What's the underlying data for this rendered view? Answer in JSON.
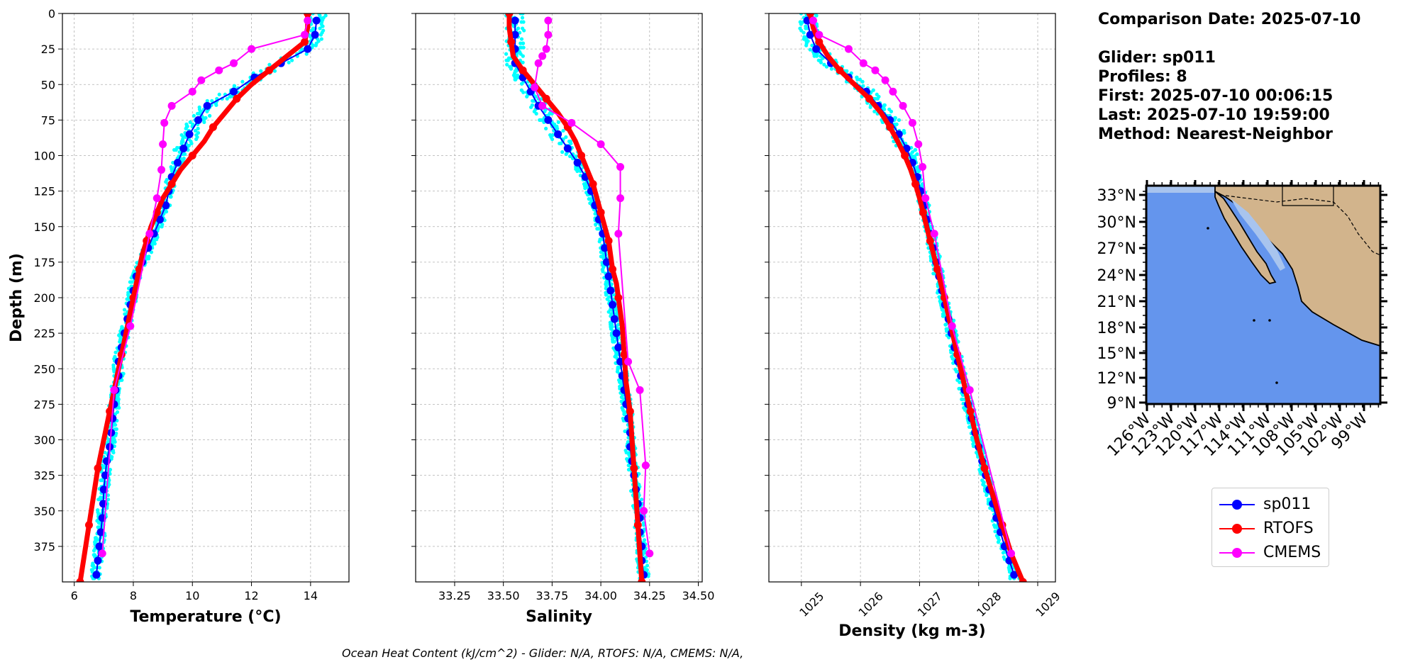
{
  "info": {
    "comparison_date": "Comparison Date: 2025-07-10",
    "glider": "Glider: sp011",
    "profiles": "Profiles: 8",
    "first": "First: 2025-07-10 00:06:15",
    "last": "Last: 2025-07-10 19:59:00",
    "method": "Method: Nearest-Neighbor"
  },
  "footer": "Ocean Heat Content (kJ/cm^2) - Glider: N/A,  RTOFS: N/A,  CMEMS: N/A,",
  "legend": [
    {
      "label": "sp011",
      "color": "#0000ff"
    },
    {
      "label": "RTOFS",
      "color": "#ff0000"
    },
    {
      "label": "CMEMS",
      "color": "#ff00ff"
    }
  ],
  "colors": {
    "glider_raw": "#00ffff",
    "glider": "#0000ff",
    "rtofs": "#ff0000",
    "cmems": "#ff00ff",
    "ocean": "#6495ed",
    "land": "#d2b48c"
  },
  "chart_data": [
    {
      "type": "line",
      "xlabel": "Temperature (°C)",
      "ylabel": "Depth (m)",
      "xlim": [
        5.6,
        15.3
      ],
      "ylim": [
        400,
        0
      ],
      "xticks": [
        6,
        8,
        10,
        12,
        14
      ],
      "yticks": [
        0,
        25,
        50,
        75,
        100,
        125,
        150,
        175,
        200,
        225,
        250,
        275,
        300,
        325,
        350,
        375
      ],
      "grid": true,
      "series": [
        {
          "name": "sp011",
          "depth": [
            5,
            15,
            25,
            35,
            45,
            55,
            65,
            75,
            85,
            95,
            105,
            115,
            125,
            135,
            145,
            155,
            165,
            175,
            185,
            195,
            205,
            215,
            225,
            235,
            245,
            255,
            265,
            275,
            285,
            295,
            305,
            315,
            325,
            335,
            345,
            355,
            365,
            375,
            385,
            395
          ],
          "values": [
            14.2,
            14.15,
            13.9,
            13.0,
            12.1,
            11.4,
            10.5,
            10.2,
            9.9,
            9.7,
            9.5,
            9.3,
            9.2,
            9.1,
            8.9,
            8.7,
            8.5,
            8.3,
            8.1,
            8.0,
            7.9,
            7.8,
            7.7,
            7.6,
            7.5,
            7.5,
            7.4,
            7.35,
            7.3,
            7.25,
            7.2,
            7.1,
            7.05,
            7.0,
            6.98,
            6.95,
            6.9,
            6.85,
            6.8,
            6.75
          ]
        },
        {
          "name": "RTOFS",
          "depth": [
            0,
            10,
            20,
            30,
            40,
            50,
            60,
            70,
            80,
            90,
            100,
            110,
            120,
            130,
            140,
            150,
            160,
            170,
            180,
            190,
            200,
            220,
            240,
            260,
            280,
            300,
            320,
            340,
            360,
            380,
            400
          ],
          "values": [
            13.9,
            13.9,
            13.8,
            13.2,
            12.6,
            12.0,
            11.5,
            11.1,
            10.7,
            10.4,
            10.0,
            9.6,
            9.3,
            9.0,
            8.8,
            8.6,
            8.45,
            8.3,
            8.2,
            8.1,
            8.0,
            7.8,
            7.6,
            7.4,
            7.2,
            7.0,
            6.8,
            6.65,
            6.5,
            6.35,
            6.2
          ]
        },
        {
          "name": "CMEMS",
          "depth": [
            5,
            15,
            25,
            35,
            40,
            47,
            55,
            65,
            77,
            92,
            110,
            130,
            155,
            220,
            265,
            380
          ],
          "values": [
            13.9,
            13.8,
            12.0,
            11.4,
            10.9,
            10.3,
            10.0,
            9.3,
            9.05,
            9.0,
            8.95,
            8.8,
            8.55,
            7.9,
            7.35,
            6.95
          ]
        }
      ]
    },
    {
      "type": "line",
      "xlabel": "Salinity",
      "xlim": [
        33.05,
        34.52
      ],
      "ylim": [
        400,
        0
      ],
      "xticks": [
        33.25,
        33.5,
        33.75,
        34.0,
        34.25,
        34.5
      ],
      "xtick_labels": [
        "33.25",
        "33.50",
        "33.75",
        "34.00",
        "34.25",
        "34.50"
      ],
      "grid": true,
      "series": [
        {
          "name": "sp011",
          "depth": [
            5,
            15,
            25,
            35,
            45,
            55,
            65,
            75,
            85,
            95,
            105,
            115,
            125,
            135,
            145,
            155,
            165,
            175,
            185,
            195,
            205,
            215,
            225,
            235,
            245,
            255,
            265,
            275,
            285,
            295,
            305,
            315,
            325,
            335,
            345,
            355,
            365,
            375,
            385,
            395
          ],
          "values": [
            33.56,
            33.56,
            33.56,
            33.56,
            33.6,
            33.64,
            33.68,
            33.73,
            33.78,
            33.83,
            33.88,
            33.92,
            33.95,
            33.97,
            33.99,
            34.01,
            34.02,
            34.03,
            34.04,
            34.05,
            34.06,
            34.07,
            34.08,
            34.09,
            34.1,
            34.11,
            34.12,
            34.13,
            34.14,
            34.15,
            34.15,
            34.16,
            34.17,
            34.18,
            34.19,
            34.2,
            34.2,
            34.21,
            34.21,
            34.22
          ]
        },
        {
          "name": "RTOFS",
          "depth": [
            0,
            10,
            20,
            30,
            40,
            50,
            60,
            70,
            80,
            90,
            100,
            110,
            120,
            130,
            140,
            150,
            160,
            170,
            180,
            190,
            200,
            220,
            240,
            260,
            280,
            300,
            320,
            340,
            360,
            380,
            400
          ],
          "values": [
            33.53,
            33.53,
            33.54,
            33.55,
            33.6,
            33.66,
            33.72,
            33.78,
            33.83,
            33.87,
            33.9,
            33.93,
            33.96,
            33.98,
            34.0,
            34.02,
            34.04,
            34.05,
            34.06,
            34.08,
            34.09,
            34.11,
            34.12,
            34.13,
            34.15,
            34.16,
            34.17,
            34.18,
            34.19,
            34.2,
            34.21
          ]
        },
        {
          "name": "CMEMS",
          "depth": [
            5,
            15,
            25,
            30,
            35,
            52,
            65,
            77,
            92,
            108,
            130,
            155,
            245,
            265,
            318,
            350,
            380
          ],
          "values": [
            33.73,
            33.73,
            33.72,
            33.7,
            33.68,
            33.66,
            33.7,
            33.85,
            34.0,
            34.1,
            34.1,
            34.09,
            34.14,
            34.2,
            34.23,
            34.22,
            34.25
          ]
        }
      ]
    },
    {
      "type": "line",
      "xlabel": "Density (kg m-3)",
      "xlim": [
        1024.45,
        1029.3
      ],
      "ylim": [
        400,
        0
      ],
      "xticks": [
        1025,
        1026,
        1027,
        1028,
        1029
      ],
      "grid": true,
      "series": [
        {
          "name": "sp011",
          "depth": [
            5,
            15,
            25,
            35,
            45,
            55,
            65,
            75,
            85,
            95,
            105,
            115,
            125,
            135,
            145,
            155,
            165,
            175,
            185,
            195,
            205,
            215,
            225,
            235,
            245,
            255,
            265,
            275,
            285,
            295,
            305,
            315,
            325,
            335,
            345,
            355,
            365,
            375,
            385,
            395
          ],
          "values": [
            1025.1,
            1025.15,
            1025.25,
            1025.5,
            1025.8,
            1026.1,
            1026.3,
            1026.5,
            1026.65,
            1026.78,
            1026.88,
            1026.96,
            1027.02,
            1027.08,
            1027.13,
            1027.18,
            1027.23,
            1027.28,
            1027.33,
            1027.38,
            1027.43,
            1027.49,
            1027.54,
            1027.59,
            1027.65,
            1027.7,
            1027.76,
            1027.82,
            1027.88,
            1027.94,
            1028.0,
            1028.06,
            1028.12,
            1028.18,
            1028.24,
            1028.3,
            1028.37,
            1028.44,
            1028.52,
            1028.6
          ]
        },
        {
          "name": "RTOFS",
          "depth": [
            0,
            10,
            20,
            30,
            40,
            50,
            60,
            70,
            80,
            90,
            100,
            110,
            120,
            130,
            140,
            150,
            160,
            170,
            180,
            190,
            200,
            220,
            240,
            260,
            280,
            300,
            320,
            340,
            360,
            380,
            400
          ],
          "values": [
            1025.15,
            1025.2,
            1025.3,
            1025.45,
            1025.65,
            1025.9,
            1026.15,
            1026.35,
            1026.5,
            1026.63,
            1026.75,
            1026.85,
            1026.93,
            1027.0,
            1027.06,
            1027.12,
            1027.18,
            1027.24,
            1027.3,
            1027.36,
            1027.42,
            1027.53,
            1027.64,
            1027.75,
            1027.86,
            1027.97,
            1028.1,
            1028.25,
            1028.4,
            1028.55,
            1028.75
          ]
        },
        {
          "name": "CMEMS",
          "depth": [
            5,
            15,
            25,
            35,
            40,
            47,
            55,
            65,
            77,
            92,
            108,
            130,
            155,
            220,
            265,
            380
          ],
          "values": [
            1025.2,
            1025.3,
            1025.8,
            1026.05,
            1026.25,
            1026.42,
            1026.55,
            1026.72,
            1026.88,
            1026.98,
            1027.05,
            1027.1,
            1027.25,
            1027.55,
            1027.85,
            1028.55
          ]
        }
      ]
    },
    {
      "type": "map",
      "lon_ticks": [
        "126°W",
        "123°W",
        "120°W",
        "117°W",
        "114°W",
        "111°W",
        "108°W",
        "105°W",
        "102°W",
        "99°W"
      ],
      "lat_ticks": [
        "33°N",
        "30°N",
        "27°N",
        "24°N",
        "21°N",
        "18°N",
        "15°N",
        "12°N",
        "9°N"
      ]
    }
  ]
}
